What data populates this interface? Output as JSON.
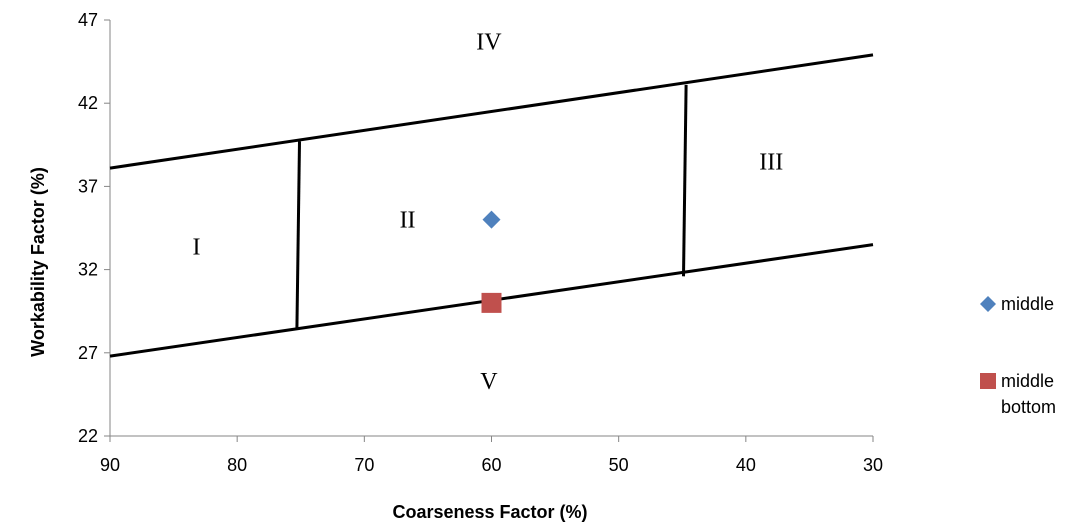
{
  "chart_data": {
    "type": "scatter",
    "xlabel": "Coarseness Factor (%)",
    "ylabel": "Workability Factor (%)",
    "xlim": [
      90,
      30
    ],
    "ylim": [
      22,
      47
    ],
    "x_reversed": true,
    "xticks": [
      90,
      80,
      70,
      60,
      50,
      40,
      30
    ],
    "yticks": [
      22,
      27,
      32,
      37,
      42,
      47
    ],
    "grid": false,
    "legend_position": "right",
    "series": [
      {
        "name": "middle",
        "marker": "diamond",
        "color": "#4f81bd",
        "points": [
          {
            "x": 60,
            "y": 35
          }
        ]
      },
      {
        "name": "middle bottom",
        "marker": "square",
        "color": "#c0504d",
        "points": [
          {
            "x": 60,
            "y": 30
          }
        ]
      }
    ],
    "boundary_lines": [
      {
        "points": [
          {
            "x": 90,
            "y": 38.1
          },
          {
            "x": 30,
            "y": 44.9
          }
        ]
      },
      {
        "points": [
          {
            "x": 90,
            "y": 26.8
          },
          {
            "x": 30,
            "y": 33.5
          }
        ]
      },
      {
        "points": [
          {
            "x": 75.1,
            "y": 39.7
          },
          {
            "x": 75.3,
            "y": 28.4
          }
        ]
      },
      {
        "points": [
          {
            "x": 44.7,
            "y": 43.1
          },
          {
            "x": 44.9,
            "y": 31.6
          }
        ]
      }
    ],
    "zones": [
      {
        "label": "I",
        "x": 83.2,
        "y": 33.4
      },
      {
        "label": "II",
        "x": 66.6,
        "y": 35
      },
      {
        "label": "III",
        "x": 38,
        "y": 38.5
      },
      {
        "label": "IV",
        "x": 60.2,
        "y": 45.7
      },
      {
        "label": "V",
        "x": 60.2,
        "y": 25.3
      }
    ]
  }
}
